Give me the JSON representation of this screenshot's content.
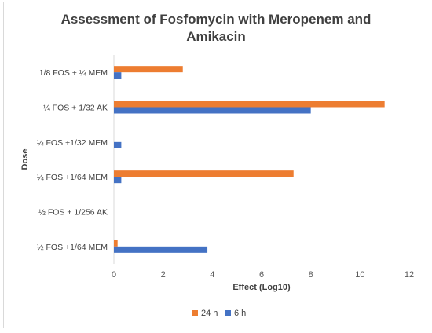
{
  "chart_data": {
    "type": "bar",
    "orientation": "horizontal",
    "title_lines": [
      "Assessment of Fosfomycin with Meropenem and",
      "Amikacin"
    ],
    "xlabel": "Effect (Log10)",
    "ylabel": "Dose",
    "xlim": [
      0,
      12
    ],
    "xticks": [
      "0",
      "2",
      "4",
      "6",
      "8",
      "10",
      "12"
    ],
    "grid": false,
    "legend_position": "bottom",
    "categories": [
      "1/8 FOS + ¼ MEM",
      "¼ FOS + 1/32 AK",
      "¼ FOS +1/32 MEM",
      "¼ FOS +1/64 MEM",
      "½ FOS + 1/256 AK",
      "½ FOS +1/64 MEM"
    ],
    "series": [
      {
        "name": "24 h",
        "color": "#ED7D31",
        "values": [
          2.8,
          11.0,
          0,
          7.3,
          0,
          0.15
        ]
      },
      {
        "name": "6 h",
        "color": "#4472C4",
        "values": [
          0.3,
          8.0,
          0.3,
          0.3,
          0,
          3.8
        ]
      }
    ]
  }
}
